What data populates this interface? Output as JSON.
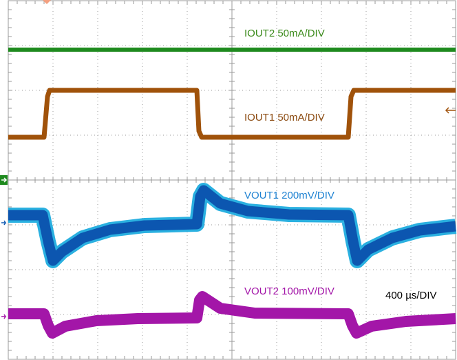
{
  "traces": [
    {
      "label": "IOUT2 50mA/DIV"
    },
    {
      "label": "IOUT1 50mA/DIV"
    },
    {
      "label": "VOUT1 200mV/DIV"
    },
    {
      "label": "VOUT2 100mV/DIV"
    }
  ],
  "timebase": "400 µs/DIV"
}
